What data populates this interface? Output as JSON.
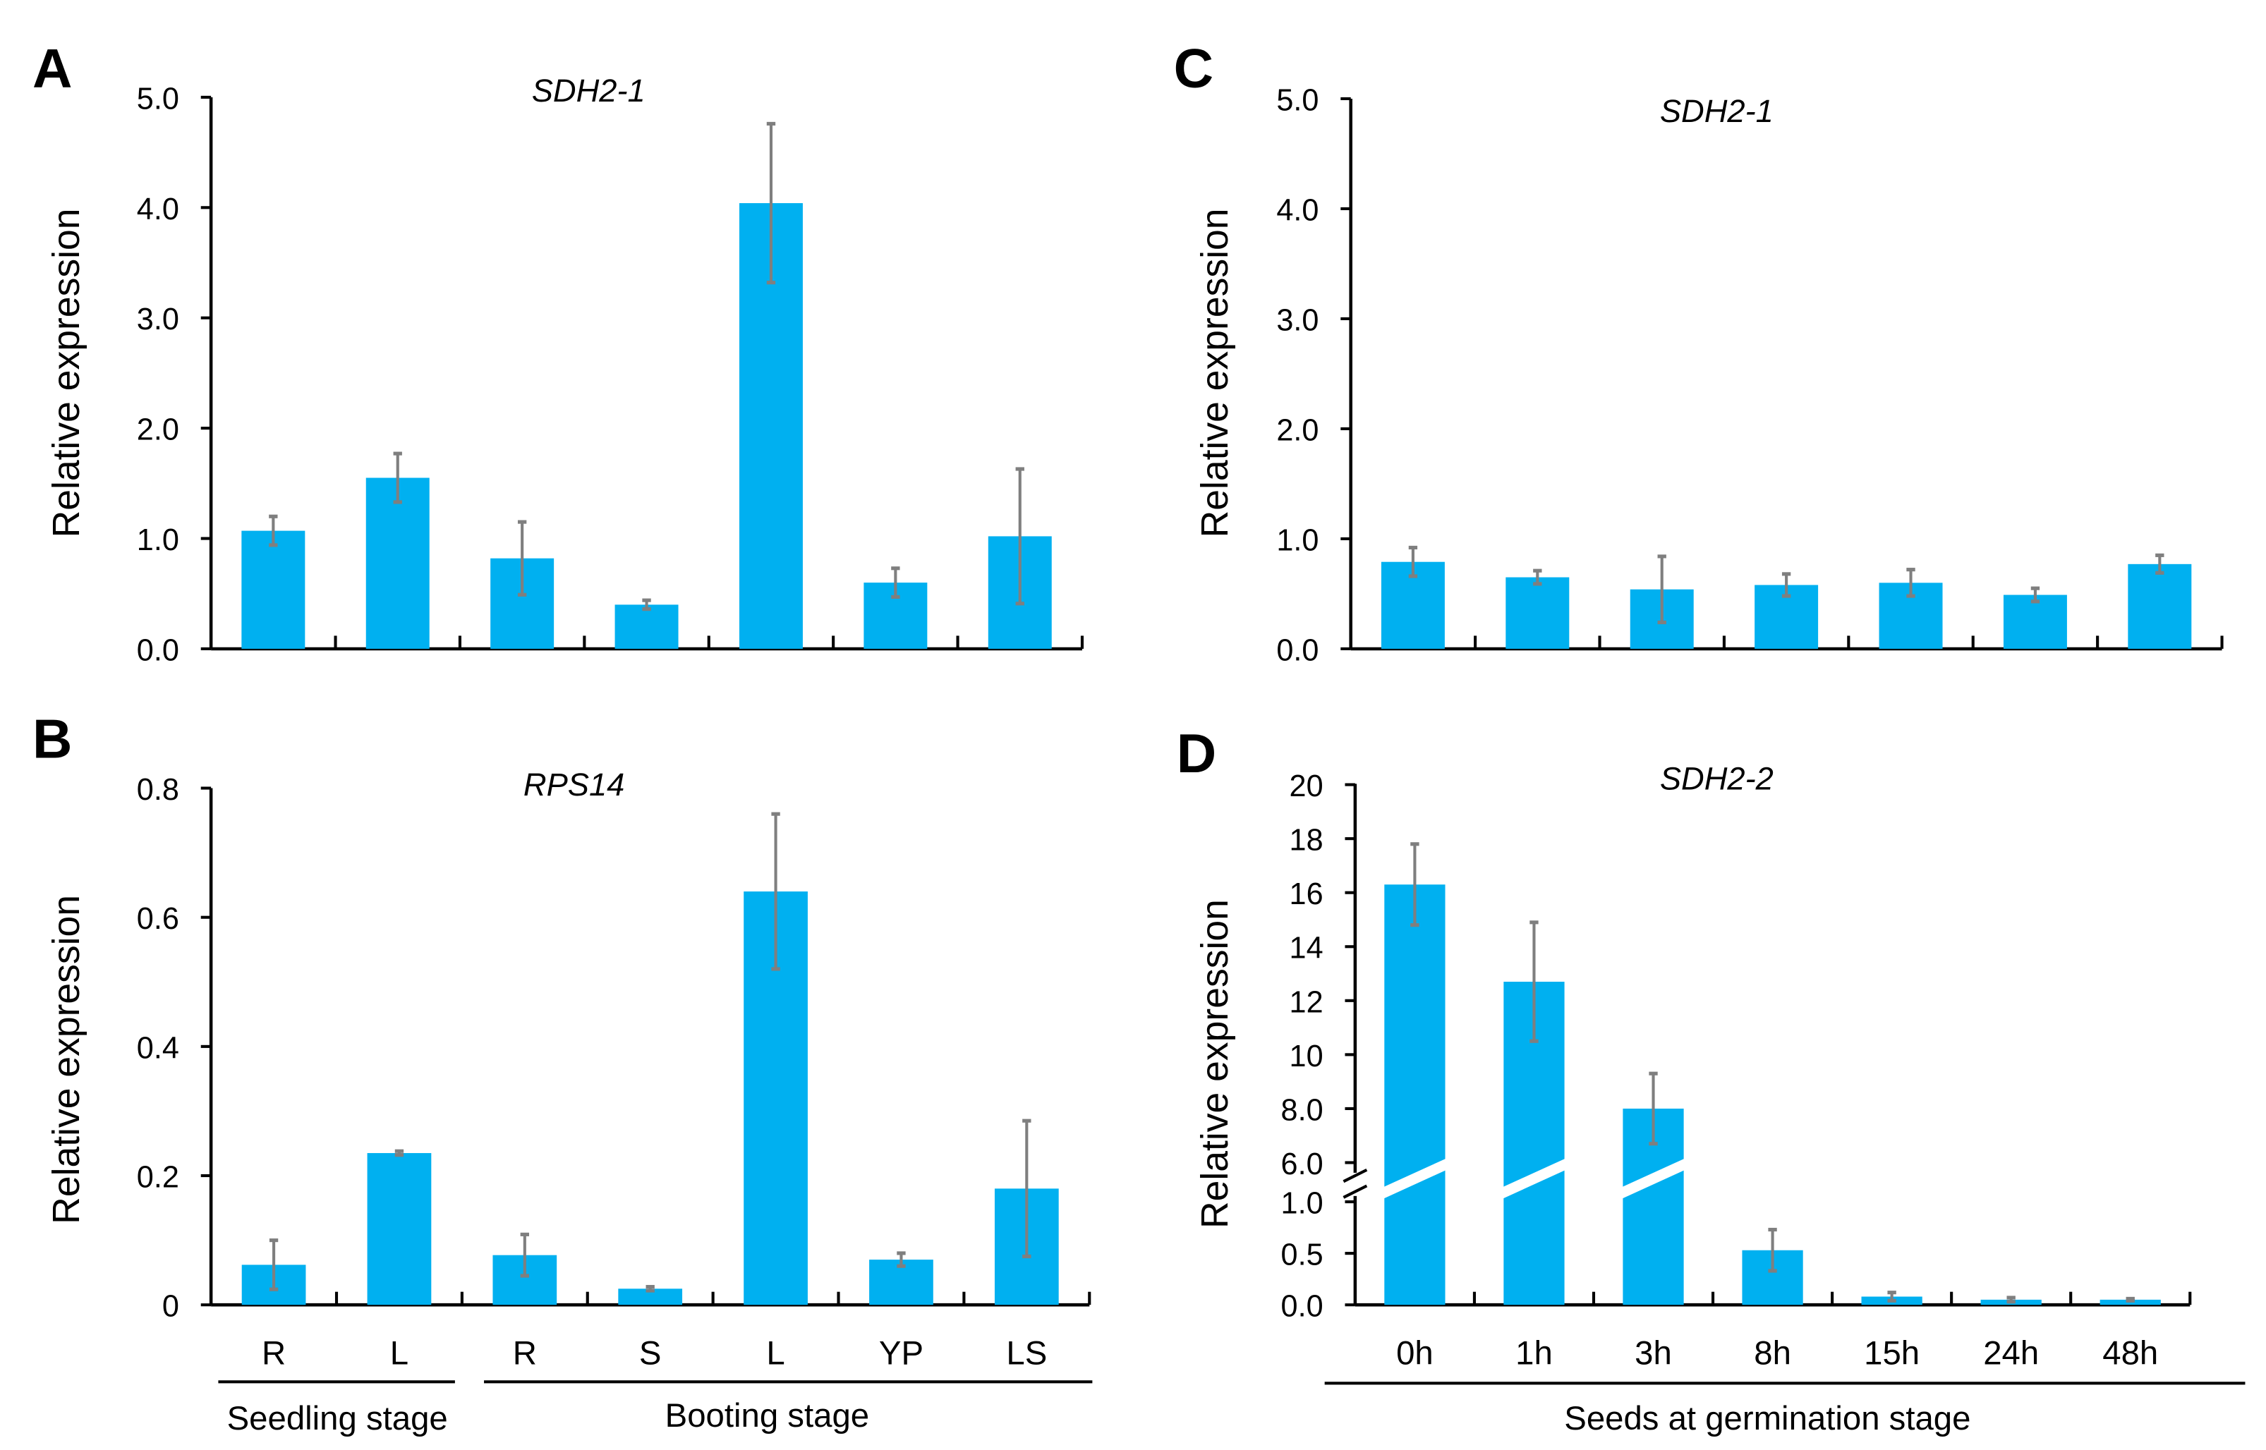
{
  "colors": {
    "bar": "#00b0f0",
    "error": "#7f7f7f",
    "axis": "#000000"
  },
  "chart_data": [
    {
      "panel": "A",
      "type": "bar",
      "title": "SDH2-1",
      "ylabel": "Relative expression",
      "ylim": [
        0,
        5
      ],
      "yticks": [
        "0.0",
        "1.0",
        "2.0",
        "3.0",
        "4.0",
        "5.0"
      ],
      "categories": [
        "R",
        "L",
        "R",
        "S",
        "L",
        "YP",
        "LS"
      ],
      "values": [
        1.07,
        1.55,
        0.82,
        0.4,
        4.04,
        0.6,
        1.02
      ],
      "errors": [
        0.13,
        0.22,
        0.33,
        0.04,
        0.72,
        0.13,
        0.61
      ]
    },
    {
      "panel": "B",
      "type": "bar",
      "title": "RPS14",
      "ylabel": "Relative expression",
      "ylim": [
        0,
        0.8
      ],
      "yticks": [
        "0",
        "0.2",
        "0.4",
        "0.6",
        "0.8"
      ],
      "categories": [
        "R",
        "L",
        "R",
        "S",
        "L",
        "YP",
        "LS"
      ],
      "values": [
        0.062,
        0.235,
        0.077,
        0.025,
        0.64,
        0.07,
        0.18
      ],
      "errors": [
        0.038,
        0.003,
        0.032,
        0.003,
        0.12,
        0.01,
        0.105
      ],
      "groups": [
        {
          "label": "Seedling stage",
          "categories": [
            0,
            1
          ]
        },
        {
          "label": "Booting stage",
          "categories": [
            2,
            3,
            4,
            5,
            6
          ]
        }
      ]
    },
    {
      "panel": "C",
      "type": "bar",
      "title": "SDH2-1",
      "ylabel": "Relative expression",
      "ylim": [
        0,
        5
      ],
      "yticks": [
        "0.0",
        "1.0",
        "2.0",
        "3.0",
        "4.0",
        "5.0"
      ],
      "categories": [
        "0h",
        "1h",
        "3h",
        "8h",
        "15h",
        "24h",
        "48h"
      ],
      "values": [
        0.79,
        0.65,
        0.54,
        0.58,
        0.6,
        0.49,
        0.77
      ],
      "errors": [
        0.13,
        0.06,
        0.3,
        0.1,
        0.12,
        0.06,
        0.08
      ]
    },
    {
      "panel": "D",
      "type": "bar",
      "title": "SDH2-2",
      "ylabel": "Relative expression",
      "axis_break": [
        1.0,
        6.0
      ],
      "ylim": [
        0,
        20
      ],
      "yticks_lower": [
        "0.0",
        "0.5",
        "1.0"
      ],
      "yticks_upper": [
        "6.0",
        "8.0",
        "10",
        "12",
        "14",
        "16",
        "18",
        "20"
      ],
      "categories": [
        "0h",
        "1h",
        "3h",
        "8h",
        "15h",
        "24h",
        "48h"
      ],
      "values": [
        16.3,
        12.7,
        8.0,
        0.53,
        0.08,
        0.05,
        0.05
      ],
      "errors": [
        1.5,
        2.2,
        1.3,
        0.2,
        0.04,
        0.02,
        0.01
      ],
      "xlabel": "Seeds at germination stage"
    }
  ]
}
